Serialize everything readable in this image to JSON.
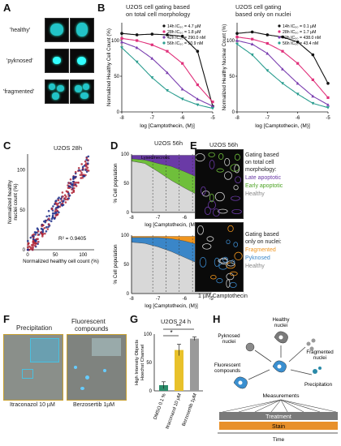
{
  "panels": {
    "A": {
      "letter": "A",
      "labels": [
        "'healthy'",
        "'pyknosed'",
        "'fragmented'"
      ]
    },
    "B": {
      "letter": "B",
      "left_title": "U2OS cell gating based on total cell morphology",
      "left_title_l1": "U2OS cell gating based",
      "left_title_l2": "on total cell morphology",
      "right_title_l1": "U2OS cell gating",
      "right_title_l2": "based only on nuclei",
      "ylabel_left": "Normalized Healthy Cell Count (%)",
      "ylabel_right": "Normalized Healthy Nuclear Count (%)",
      "xlabel": "log [Camptothecin, (M)]",
      "legend_left": [
        "14h IC₅₀ = 4.7 µM",
        "28h IC₅₀ = 1.8 µM",
        "42h IC₅₀ = 290.0 nM",
        "56h IC₅₀ = 50.9 nM"
      ],
      "legend_right": [
        "14h IC₅₀ = 0.1 µM",
        "28h IC₅₀ = 1.7 µM",
        "42h IC₅₀ = 438.0 nM",
        "56h IC₅₀ = 43.4 nM"
      ]
    },
    "C": {
      "letter": "C",
      "title": "U2OS 28h",
      "ylabel": "Normalized healthy nuclei count (%)",
      "xlabel": "Normalized healthy cell count (%)",
      "r2": "R² = 0.9405"
    },
    "D": {
      "letter": "D",
      "title": "U2OS 56h",
      "ylabel": "% Cell population",
      "xlabel": "log [Camptothecin, (M)]",
      "top_labels": [
        "Late apoptotic",
        "Early apoptotic",
        "Healthy"
      ],
      "top_note": "Lysed/necrotic",
      "bottom_labels": [
        "Fragmented",
        "Pyknosed",
        "Healthy"
      ]
    },
    "E": {
      "letter": "E",
      "title": "U2OS 56h",
      "top_text": [
        "Gating based",
        "on total cell",
        "morphology:"
      ],
      "top_legend": [
        "Late apoptotic",
        "Early apoptotic",
        "Healthy"
      ],
      "bottom_text": [
        "Gating based",
        "only on nuclei:"
      ],
      "bottom_legend": [
        "Fragmented",
        "Pyknosed",
        "Healthy"
      ],
      "caption": "1 µM Camptothecin"
    },
    "F": {
      "letter": "F",
      "left_title": "Precipitation",
      "right_title_l1": "Fluorescent",
      "right_title_l2": "compounds",
      "left_caption": "Itraconazol 10 µM",
      "right_caption": "Berzosertib 1µM"
    },
    "G": {
      "letter": "G",
      "title": "U2OS 24 h",
      "ylabel": "High Intensity Objects Hoechst Channel",
      "sig_top": "**",
      "sig_mid": "*",
      "categories": [
        "DMSO 0.1 %",
        "Itraconazol 10 µM",
        "Berzosertib 1µM"
      ]
    },
    "H": {
      "letter": "H",
      "nodes": {
        "healthy": "Healthy nuclei",
        "pyknosed": "Pyknosed nuclei",
        "fragmented": "Fragmented nuclei",
        "fluorescent": "Fluorescent compounds",
        "precipitation": "Precipitation"
      },
      "measurements": "Measurements",
      "treatment": "Treatment",
      "stain": "Stain",
      "time": "Time"
    }
  },
  "colors": {
    "c14": "#111111",
    "c28": "#e0307a",
    "c42": "#7b3fb0",
    "c56": "#2a9d8f",
    "late": "#6a3aa6",
    "early": "#6fbf3b",
    "healthy": "#d8d8d8",
    "frag": "#f0951e",
    "pyk": "#3a86c8",
    "gbar1": "#2a8c6a",
    "gbar2": "#e8c12a",
    "gbar3": "#9a9a9a"
  },
  "chart_data": [
    {
      "type": "line",
      "panel": "B-left",
      "x": [
        -8,
        -7.5,
        -7,
        -6.5,
        -6,
        -5.5,
        -5
      ],
      "series": [
        {
          "name": "14h IC₅₀ = 4.7 µM",
          "values": [
            110,
            108,
            109,
            108,
            106,
            85,
            8
          ]
        },
        {
          "name": "28h IC₅₀ = 1.8 µM",
          "values": [
            103,
            100,
            94,
            85,
            68,
            38,
            14
          ]
        },
        {
          "name": "42h IC₅₀ = 290.0 nM",
          "values": [
            98,
            90,
            75,
            55,
            32,
            18,
            8
          ]
        },
        {
          "name": "56h IC₅₀ = 50.9 nM",
          "values": [
            90,
            70,
            48,
            30,
            18,
            10,
            5
          ]
        }
      ],
      "xlabel": "log [Camptothecin, (M)]",
      "ylabel": "Normalized Healthy Cell Count (%)",
      "ylim": [
        0,
        125
      ]
    },
    {
      "type": "line",
      "panel": "B-right",
      "x": [
        -8,
        -7.5,
        -7,
        -6.5,
        -6,
        -5.5,
        -5
      ],
      "series": [
        {
          "name": "14h IC₅₀ = 0.1 µM",
          "values": [
            110,
            112,
            108,
            105,
            98,
            80,
            40
          ]
        },
        {
          "name": "28h IC₅₀ = 1.7 µM",
          "values": [
            105,
            102,
            96,
            85,
            68,
            45,
            20
          ]
        },
        {
          "name": "42h IC₅₀ = 438.0 nM",
          "values": [
            100,
            95,
            82,
            60,
            40,
            22,
            10
          ]
        },
        {
          "name": "56h IC₅₀ = 43.4 nM",
          "values": [
            95,
            80,
            58,
            40,
            25,
            12,
            6
          ]
        }
      ],
      "xlabel": "log [Camptothecin, (M)]",
      "ylabel": "Normalized Healthy Nuclear Count (%)",
      "ylim": [
        0,
        125
      ]
    },
    {
      "type": "scatter",
      "panel": "C",
      "xlim": [
        0,
        100
      ],
      "ylim": [
        0,
        100
      ],
      "r2": "R² = 0.9405"
    },
    {
      "type": "bar",
      "panel": "G",
      "categories": [
        "DMSO 0.1 %",
        "Itraconazol 10 µM",
        "Berzosertib 1µM"
      ],
      "values": [
        10,
        72,
        92
      ],
      "errors": [
        6,
        10,
        3
      ],
      "ylim": [
        0,
        100
      ]
    }
  ]
}
